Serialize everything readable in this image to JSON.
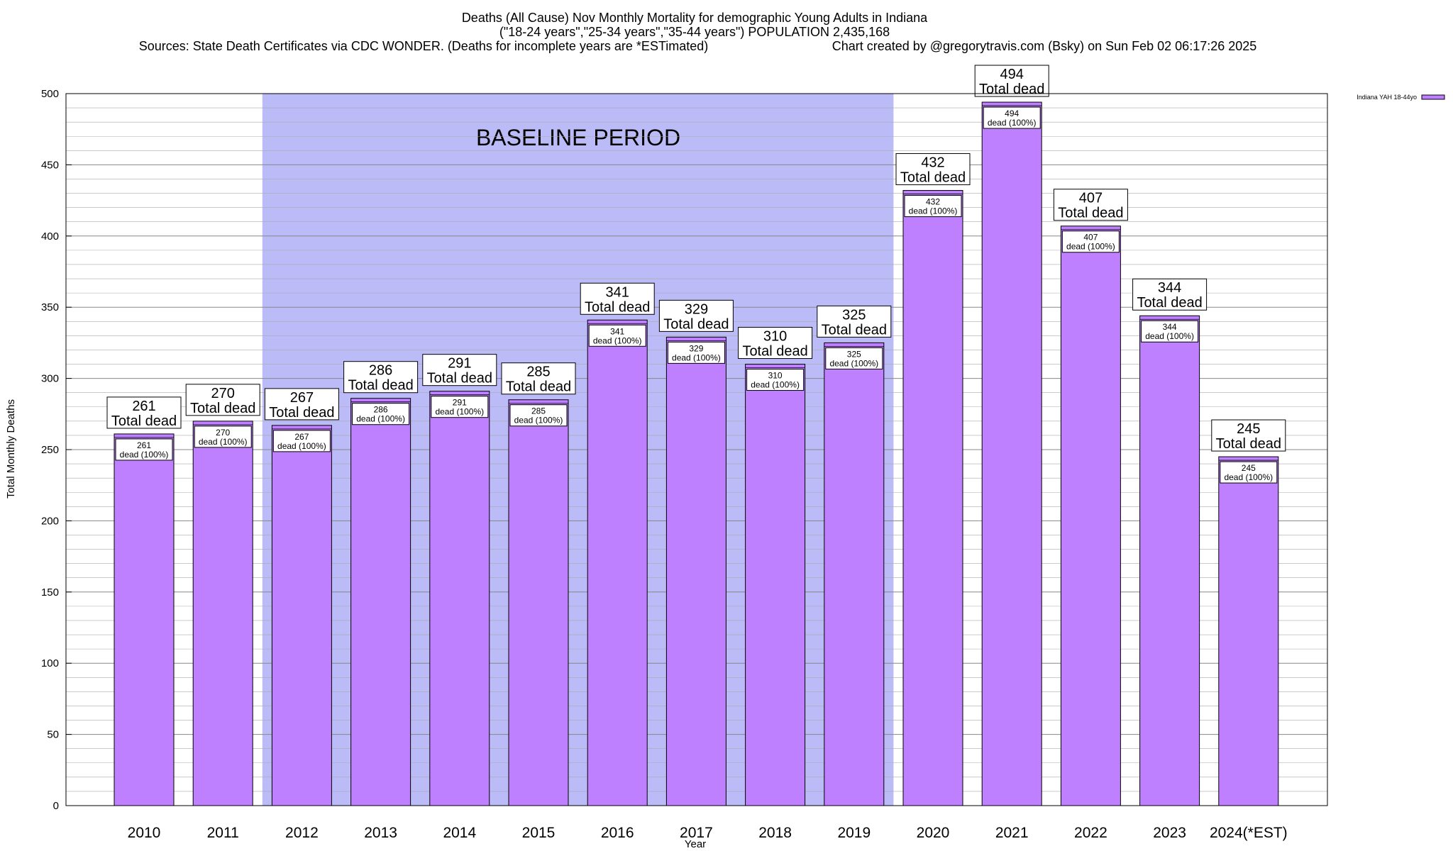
{
  "chart_data": {
    "type": "bar",
    "title": "Deaths (All Cause) Nov Monthly Mortality for demographic Young Adults in Indiana",
    "subtitle": "(\"18-24 years\",\"25-34 years\",\"35-44 years\") POPULATION 2,435,168",
    "source_note": "Sources: State Death Certificates via CDC WONDER. (Deaths for incomplete years are *ESTimated)",
    "credit_note": "Chart created by @gregorytravis.com (Bsky) on Sun Feb 02 06:17:26 2025",
    "xlabel": "Year",
    "ylabel": "Total Monthly Deaths",
    "ylim": [
      0,
      500
    ],
    "yticks": [
      0,
      50,
      100,
      150,
      200,
      250,
      300,
      350,
      400,
      450,
      500
    ],
    "minor_grid_step": 10,
    "grid": true,
    "categories": [
      "2010",
      "2011",
      "2012",
      "2013",
      "2014",
      "2015",
      "2016",
      "2017",
      "2018",
      "2019",
      "2020",
      "2021",
      "2022",
      "2023",
      "2024(*EST)"
    ],
    "series": [
      {
        "name": "Indiana YAH 18-44yo",
        "values": [
          261,
          270,
          267,
          286,
          291,
          285,
          341,
          329,
          310,
          325,
          432,
          494,
          407,
          344,
          245
        ]
      }
    ],
    "value_label_suffix": "Total dead",
    "inner_label_suffix": "dead (100%)",
    "shaded_region": {
      "label": "BASELINE PERIOD",
      "from_category": "2012",
      "to_category": "2019"
    },
    "legend_position": "top-right",
    "colors": {
      "bar": "#bf80ff",
      "bar_stroke": "#000000",
      "shade": "#bbbbf8",
      "grid": "#aaaaaa"
    }
  }
}
